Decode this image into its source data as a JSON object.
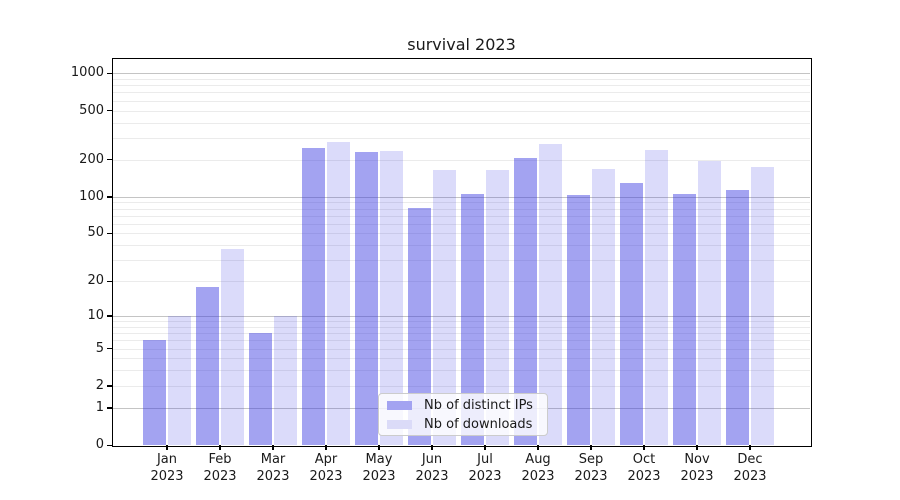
{
  "title": "survival 2023",
  "legend": {
    "items": [
      {
        "label": "Nb of distinct IPs",
        "color": "rgba(55,55,225,0.46)",
        "color_hex": "#a3a3f1"
      },
      {
        "label": "Nb of downloads",
        "color": "rgba(55,55,225,0.18)",
        "color_hex": "#dbdbf8"
      }
    ]
  },
  "chart_data": {
    "type": "bar",
    "title": "survival 2023",
    "categories": [
      "Jan 2023",
      "Feb 2023",
      "Mar 2023",
      "Apr 2023",
      "May 2023",
      "Jun 2023",
      "Jul 2023",
      "Aug 2023",
      "Sep 2023",
      "Oct 2023",
      "Nov 2023",
      "Dec 2023"
    ],
    "series": [
      {
        "name": "Nb of distinct IPs",
        "color": "rgba(55,55,225,0.46)",
        "color_hex": "#a3a3f1",
        "values": [
          6,
          18,
          7,
          250,
          230,
          81,
          105,
          205,
          104,
          130,
          106,
          114
        ]
      },
      {
        "name": "Nb of downloads",
        "color": "rgba(55,55,225,0.18)",
        "color_hex": "#dbdbf8",
        "values": [
          10,
          37,
          10,
          280,
          235,
          166,
          166,
          270,
          167,
          241,
          194,
          175
        ]
      }
    ],
    "yscale": "log1p",
    "yticks": [
      1000,
      500,
      200,
      100,
      50,
      20,
      10,
      5,
      2,
      1,
      0
    ],
    "ylim": [
      0,
      1330
    ],
    "xlabel": "",
    "ylabel": "",
    "grid": true,
    "legend_position": "lower center"
  },
  "colors": {
    "major_grid": "#c4c4c4",
    "minor_grid": "#ebebeb",
    "spine": "#000000",
    "text": "#1a1a1a"
  }
}
